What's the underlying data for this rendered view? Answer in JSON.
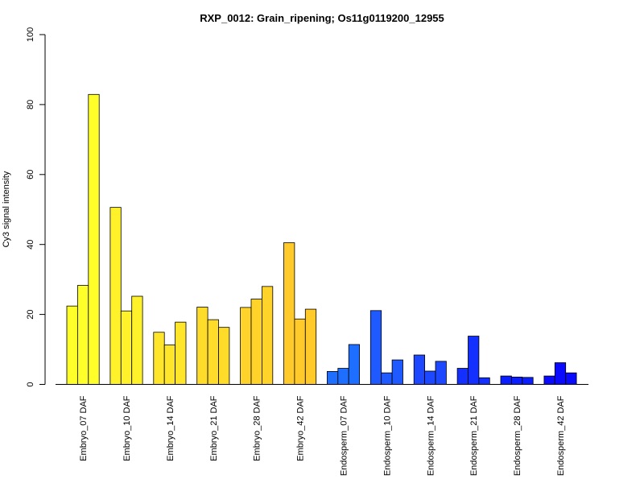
{
  "chart_data": {
    "type": "bar",
    "title": "RXP_0012: Grain_ripening; Os11g0119200_12955",
    "xlabel": "",
    "ylabel": "Cy3 signal intensity",
    "ylim": [
      0,
      100
    ],
    "yticks": [
      0,
      20,
      40,
      60,
      80,
      100
    ],
    "grid": false,
    "categories": [
      "Embryo_07 DAF",
      "Embryo_10 DAF",
      "Embryo_14 DAF",
      "Embryo_21 DAF",
      "Embryo_28 DAF",
      "Embryo_42 DAF",
      "Endosperm_07 DAF",
      "Endosperm_10 DAF",
      "Endosperm_14 DAF",
      "Endosperm_21 DAF",
      "Endosperm_28 DAF",
      "Endosperm_42 DAF"
    ],
    "colors": [
      "#FFFF2A",
      "#FFF12A",
      "#FFE62A",
      "#FFDC2A",
      "#FFD32A",
      "#FFCA2A",
      "#1E6EFF",
      "#1E5AFF",
      "#1E48FF",
      "#1430FF",
      "#0A1EFF",
      "#0A0AFF"
    ],
    "replicates_per_category": 3,
    "values": [
      [
        22.4,
        28.3,
        82.9
      ],
      [
        50.6,
        21.0,
        25.2
      ],
      [
        14.9,
        11.3,
        17.8
      ],
      [
        22.1,
        18.5,
        16.3
      ],
      [
        22.0,
        24.4,
        28.0
      ],
      [
        40.5,
        18.7,
        21.5
      ],
      [
        3.7,
        4.6,
        11.4
      ],
      [
        21.1,
        3.3,
        7.0
      ],
      [
        8.4,
        3.8,
        6.6
      ],
      [
        4.6,
        13.8,
        1.9
      ],
      [
        2.4,
        2.1,
        2.0
      ],
      [
        2.4,
        6.2,
        3.3
      ]
    ]
  }
}
